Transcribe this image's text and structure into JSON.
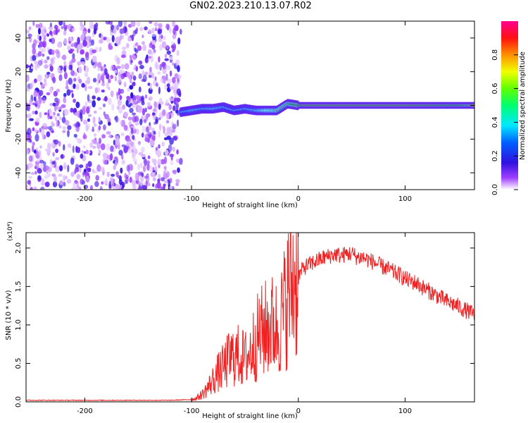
{
  "title": "GN02.2023.210.13.07.R02",
  "chart_data": [
    {
      "type": "heatmap",
      "xlabel": "Height of straight line (km)",
      "ylabel": "Frequency (Hz)",
      "xlim": [
        -255,
        165
      ],
      "ylim": [
        -50,
        50
      ],
      "x_ticks": [
        -200,
        -100,
        0,
        100
      ],
      "y_ticks": [
        -40,
        -20,
        0,
        20,
        40
      ],
      "grid": false,
      "colorbar": {
        "label": "Normalized spectral amplitude",
        "range": [
          0,
          1
        ],
        "ticks": [
          "0.0",
          "0.2",
          "0.4",
          "0.6",
          "0.8"
        ]
      },
      "noise_region_x": [
        -255,
        -110
      ],
      "signal_track": [
        {
          "x": -110,
          "freq": -4,
          "amp": 0.45
        },
        {
          "x": -100,
          "freq": -3,
          "amp": 0.55
        },
        {
          "x": -90,
          "freq": -2,
          "amp": 0.5
        },
        {
          "x": -80,
          "freq": -2,
          "amp": 0.55
        },
        {
          "x": -70,
          "freq": -1,
          "amp": 0.5
        },
        {
          "x": -60,
          "freq": -3,
          "amp": 0.45
        },
        {
          "x": -50,
          "freq": -2,
          "amp": 0.5
        },
        {
          "x": -40,
          "freq": -3,
          "amp": 0.55
        },
        {
          "x": -30,
          "freq": -3,
          "amp": 0.7
        },
        {
          "x": -20,
          "freq": -3,
          "amp": 0.8
        },
        {
          "x": -10,
          "freq": 1,
          "amp": 0.85
        },
        {
          "x": 0,
          "freq": 0,
          "amp": 0.95
        },
        {
          "x": 25,
          "freq": 0,
          "amp": 1.0
        },
        {
          "x": 50,
          "freq": 0,
          "amp": 1.0
        },
        {
          "x": 75,
          "freq": 0,
          "amp": 1.0
        },
        {
          "x": 100,
          "freq": 0,
          "amp": 1.0
        },
        {
          "x": 125,
          "freq": 0,
          "amp": 0.95
        },
        {
          "x": 150,
          "freq": 0,
          "amp": 0.9
        },
        {
          "x": 165,
          "freq": 0,
          "amp": 0.85
        }
      ]
    },
    {
      "type": "line",
      "xlabel": "Height of straight line (km)",
      "ylabel": "SNR (10 * v/v)",
      "y_multiplier": "(x10⁴)",
      "xlim": [
        -255,
        165
      ],
      "ylim": [
        0,
        2.2
      ],
      "x_ticks": [
        -200,
        -100,
        0,
        100
      ],
      "y_ticks": [
        "0.0",
        "0.5",
        "1.0",
        "1.5",
        "2.0"
      ],
      "grid": false,
      "series": [
        {
          "color": "#ee2222",
          "x": [
            -255,
            -240,
            -220,
            -200,
            -180,
            -160,
            -140,
            -120,
            -100,
            -95,
            -90,
            -85,
            -80,
            -75,
            -70,
            -65,
            -60,
            -55,
            -50,
            -45,
            -40,
            -35,
            -30,
            -25,
            -20,
            -15,
            -10,
            -5,
            0,
            5,
            10,
            15,
            20,
            25,
            30,
            35,
            40,
            45,
            50,
            55,
            60,
            65,
            70,
            75,
            80,
            85,
            90,
            95,
            100,
            105,
            110,
            115,
            120,
            125,
            130,
            135,
            140,
            145,
            150,
            155,
            160,
            165
          ],
          "values": [
            0.02,
            0.02,
            0.02,
            0.02,
            0.02,
            0.02,
            0.02,
            0.02,
            0.03,
            0.05,
            0.1,
            0.18,
            0.28,
            0.38,
            0.45,
            0.55,
            0.6,
            0.6,
            0.55,
            0.65,
            0.8,
            0.9,
            0.95,
            1.0,
            0.95,
            1.1,
            1.4,
            1.55,
            1.62,
            1.75,
            1.78,
            1.82,
            1.85,
            1.88,
            1.9,
            1.92,
            1.9,
            1.92,
            1.93,
            1.88,
            1.88,
            1.85,
            1.82,
            1.78,
            1.75,
            1.72,
            1.68,
            1.65,
            1.6,
            1.57,
            1.55,
            1.5,
            1.46,
            1.42,
            1.38,
            1.34,
            1.3,
            1.27,
            1.24,
            1.2,
            1.17,
            1.13
          ]
        }
      ]
    }
  ]
}
